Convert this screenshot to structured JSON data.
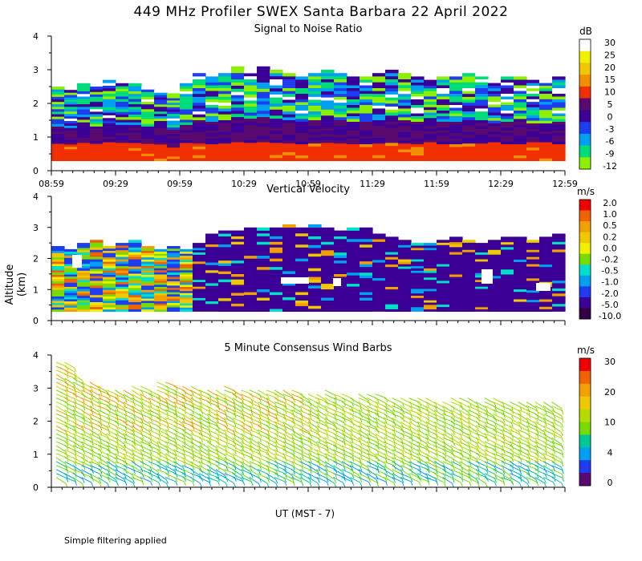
{
  "title": "449 MHz Profiler SWEX Santa Barbara 22 April 2022",
  "xlabel": "UT  (MST - 7)",
  "ylabel": "Altitude (km)",
  "footnote": "Simple filtering applied",
  "chart_data": [
    {
      "type": "heatmap",
      "title": "Signal to Noise Ratio",
      "units": "dB",
      "x_ticks": [
        "08:59",
        "09:29",
        "09:59",
        "10:29",
        "10:59",
        "11:29",
        "11:59",
        "12:29",
        "12:59"
      ],
      "y_ticks": [
        "0",
        "1",
        "2",
        "3",
        "4"
      ],
      "ylim": [
        0,
        4
      ],
      "colorbar": {
        "labels": [
          "30",
          "25",
          "20",
          "15",
          "10",
          "5",
          "0",
          "-3",
          "-6",
          "-9",
          "-12"
        ],
        "colors": [
          "#ffffff",
          "#f0f000",
          "#f0c800",
          "#f09000",
          "#f03000",
          "#5a0a6e",
          "#3c0096",
          "#1e3cf0",
          "#00a0f0",
          "#00dc78",
          "#8cf000"
        ]
      },
      "top_km": [
        2.5,
        2.4,
        2.6,
        2.5,
        2.7,
        2.6,
        2.6,
        2.5,
        2.4,
        2.3,
        2.6,
        2.9,
        2.8,
        2.9,
        3.1,
        3.0,
        3.1,
        3.0,
        2.9,
        2.8,
        2.9,
        3.0,
        2.9,
        2.8,
        2.8,
        2.9,
        3.0,
        2.9,
        2.8,
        2.7,
        2.8,
        2.8,
        2.9,
        2.9,
        2.7,
        2.8,
        2.8,
        2.7,
        2.7,
        2.8
      ]
    },
    {
      "type": "heatmap",
      "title": "Vertical Velocity",
      "units": "m/s",
      "x_ticks": [
        "",
        "",
        "",
        "",
        "",
        "",
        "",
        "",
        ""
      ],
      "y_ticks": [
        "0",
        "1",
        "2",
        "3",
        "4"
      ],
      "ylim": [
        0,
        4
      ],
      "colorbar": {
        "labels": [
          "2.0",
          "1.0",
          "0.5",
          "0.2",
          "0.0",
          "-0.2",
          "-0.5",
          "-1.0",
          "-2.0",
          "-5.0",
          "-10.0"
        ],
        "colors": [
          "#f00000",
          "#f06400",
          "#f0a000",
          "#f0c800",
          "#f0f000",
          "#78dc00",
          "#00e0c8",
          "#00a0f0",
          "#1e3cf0",
          "#3c0096",
          "#320046"
        ]
      },
      "top_km": [
        2.4,
        2.3,
        2.5,
        2.6,
        2.4,
        2.5,
        2.6,
        2.4,
        2.3,
        2.4,
        2.3,
        2.5,
        2.8,
        2.9,
        2.9,
        3.0,
        3.0,
        3.0,
        3.1,
        3.0,
        3.1,
        3.0,
        2.9,
        3.0,
        3.0,
        2.8,
        2.7,
        2.6,
        2.5,
        2.5,
        2.6,
        2.7,
        2.6,
        2.5,
        2.6,
        2.7,
        2.7,
        2.6,
        2.7,
        2.8
      ]
    },
    {
      "type": "barbs",
      "title": "5 Minute Consensus Wind Barbs",
      "units": "m/s",
      "x_ticks": [
        "",
        "",
        "",
        "",
        "",
        "",
        "",
        "",
        ""
      ],
      "y_ticks": [
        "0",
        "1",
        "2",
        "3",
        "4"
      ],
      "ylim": [
        0,
        4
      ],
      "colorbar": {
        "labels": [
          "30",
          "20",
          "10",
          "4",
          "0"
        ],
        "colors": [
          "#f00000",
          "#f06400",
          "#f0a000",
          "#f0c800",
          "#b4dc00",
          "#78dc00",
          "#00c896",
          "#00a0f0",
          "#1e3cf0",
          "#5a0a6e"
        ]
      },
      "top_km": [
        3.8,
        3.5,
        3.2,
        3.1,
        3.0,
        3.0,
        3.1,
        3.0,
        3.2,
        3.1,
        3.1,
        3.0,
        3.0,
        3.1,
        3.0,
        3.0,
        3.0,
        3.0,
        3.0,
        2.9,
        2.9,
        3.0,
        2.9,
        2.8,
        2.9,
        2.9,
        2.8,
        2.8,
        2.8,
        2.8,
        2.7,
        2.8,
        2.8,
        2.7,
        2.8,
        2.7,
        2.7,
        2.6,
        2.7,
        2.6
      ]
    }
  ]
}
